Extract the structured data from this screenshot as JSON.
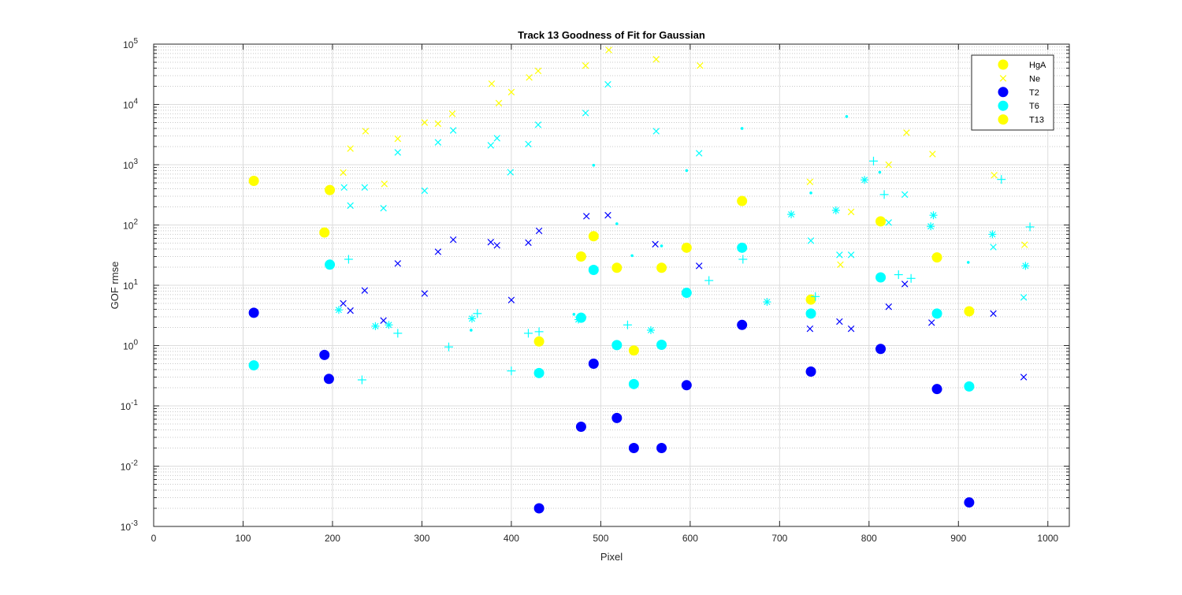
{
  "chart_data": {
    "type": "scatter",
    "title": "Track 13  Goodness of Fit for Gaussian",
    "xlabel": "Pixel",
    "ylabel": "GOF rmse",
    "xlim": [
      0,
      1024
    ],
    "ylim": [
      0.001,
      100000
    ],
    "yscale": "log",
    "grid": "major and minor",
    "legend_position": "top-right",
    "x_ticks": [
      {
        "v": 0,
        "label": "0"
      },
      {
        "v": 100,
        "label": "100"
      },
      {
        "v": 200,
        "label": "200"
      },
      {
        "v": 300,
        "label": "300"
      },
      {
        "v": 400,
        "label": "400"
      },
      {
        "v": 500,
        "label": "500"
      },
      {
        "v": 600,
        "label": "600"
      },
      {
        "v": 700,
        "label": "700"
      },
      {
        "v": 800,
        "label": "800"
      },
      {
        "v": 900,
        "label": "900"
      },
      {
        "v": 1000,
        "label": "1000"
      }
    ],
    "y_ticks": [
      {
        "exp": -3,
        "label": "10",
        "sup": "-3"
      },
      {
        "exp": -2,
        "label": "10",
        "sup": "-2"
      },
      {
        "exp": -1,
        "label": "10",
        "sup": "-1"
      },
      {
        "exp": 0,
        "label": "10",
        "sup": "0"
      },
      {
        "exp": 1,
        "label": "10",
        "sup": "1"
      },
      {
        "exp": 2,
        "label": "10",
        "sup": "2"
      },
      {
        "exp": 3,
        "label": "10",
        "sup": "3"
      },
      {
        "exp": 4,
        "label": "10",
        "sup": "4"
      },
      {
        "exp": 5,
        "label": "10",
        "sup": "5"
      }
    ],
    "legend": [
      {
        "label": "HgA",
        "color": "#FFFF00",
        "marker": "dot"
      },
      {
        "label": "Ne",
        "color": "#FFFF00",
        "marker": "x"
      },
      {
        "label": "T2",
        "color": "#0000FF",
        "marker": "dot"
      },
      {
        "label": "T6",
        "color": "#00FFFF",
        "marker": "dot"
      },
      {
        "label": "T13",
        "color": "#FFFF00",
        "marker": "dot"
      }
    ],
    "series": [
      {
        "color": "#0000FF",
        "marker": "dot",
        "points": [
          [
            112,
            3.5
          ],
          [
            191,
            0.7
          ],
          [
            196,
            0.28
          ],
          [
            431,
            0.002
          ],
          [
            478,
            0.045
          ],
          [
            492,
            0.5
          ],
          [
            518,
            0.063
          ],
          [
            537,
            0.02
          ],
          [
            568,
            0.02
          ],
          [
            596,
            0.22
          ],
          [
            658,
            2.2
          ],
          [
            735,
            0.37
          ],
          [
            813,
            0.88
          ],
          [
            876,
            0.19
          ],
          [
            912,
            0.0025
          ]
        ]
      },
      {
        "color": "#00FFFF",
        "marker": "dot",
        "points": [
          [
            112,
            0.47
          ],
          [
            197,
            22
          ],
          [
            431,
            0.35
          ],
          [
            478,
            2.9
          ],
          [
            492,
            18
          ],
          [
            518,
            1.02
          ],
          [
            537,
            0.23
          ],
          [
            568,
            1.03
          ],
          [
            596,
            7.5
          ],
          [
            658,
            42
          ],
          [
            735,
            3.4
          ],
          [
            813,
            13.5
          ],
          [
            876,
            3.4
          ],
          [
            912,
            0.21
          ]
        ]
      },
      {
        "color": "#FFFF00",
        "marker": "dot",
        "points": [
          [
            112,
            540
          ],
          [
            191,
            75
          ],
          [
            197,
            380
          ],
          [
            431,
            1.17
          ],
          [
            478,
            30
          ],
          [
            492,
            65
          ],
          [
            518,
            19.5
          ],
          [
            537,
            0.83
          ],
          [
            568,
            19.5
          ],
          [
            596,
            42
          ],
          [
            658,
            250
          ],
          [
            735,
            5.8
          ],
          [
            813,
            115
          ],
          [
            876,
            29
          ],
          [
            912,
            3.7
          ]
        ]
      },
      {
        "color": "#FFFF00",
        "marker": "x",
        "points": [
          [
            212,
            740
          ],
          [
            220,
            1850
          ],
          [
            237,
            3600
          ],
          [
            258,
            480
          ],
          [
            273,
            2700
          ],
          [
            303,
            5000
          ],
          [
            318,
            4800
          ],
          [
            334,
            7000
          ],
          [
            378,
            22000
          ],
          [
            386,
            10500
          ],
          [
            400,
            16000
          ],
          [
            420,
            28000
          ],
          [
            430,
            36000
          ],
          [
            483,
            44000
          ],
          [
            509,
            80000
          ],
          [
            562,
            56000
          ],
          [
            611,
            44000
          ],
          [
            734,
            520
          ],
          [
            768,
            22
          ],
          [
            780,
            165
          ],
          [
            822,
            1000
          ],
          [
            842,
            3400
          ],
          [
            871,
            1500
          ],
          [
            940,
            670
          ],
          [
            974,
            47
          ]
        ]
      },
      {
        "color": "#00FFFF",
        "marker": "x",
        "points": [
          [
            213,
            420
          ],
          [
            220,
            210
          ],
          [
            236,
            420
          ],
          [
            257,
            190
          ],
          [
            273,
            1600
          ],
          [
            303,
            370
          ],
          [
            318,
            2350
          ],
          [
            335,
            3700
          ],
          [
            377,
            2100
          ],
          [
            384,
            2750
          ],
          [
            399,
            750
          ],
          [
            419,
            2200
          ],
          [
            430,
            4600
          ],
          [
            483,
            7200
          ],
          [
            508,
            21500
          ],
          [
            562,
            3600
          ],
          [
            610,
            1550
          ],
          [
            735,
            55
          ],
          [
            767,
            32
          ],
          [
            780,
            32
          ],
          [
            822,
            110
          ],
          [
            840,
            320
          ],
          [
            939,
            43
          ],
          [
            973,
            6.3
          ]
        ]
      },
      {
        "color": "#0000FF",
        "marker": "x",
        "points": [
          [
            212,
            5.0
          ],
          [
            220,
            3.8
          ],
          [
            236,
            8.2
          ],
          [
            257,
            2.6
          ],
          [
            273,
            23
          ],
          [
            303,
            7.3
          ],
          [
            318,
            36
          ],
          [
            335,
            57
          ],
          [
            377,
            52
          ],
          [
            384,
            46
          ],
          [
            400,
            5.7
          ],
          [
            419,
            51
          ],
          [
            431,
            80
          ],
          [
            484,
            140
          ],
          [
            508,
            145
          ],
          [
            561,
            48
          ],
          [
            610,
            21
          ],
          [
            734,
            1.9
          ],
          [
            767,
            2.5
          ],
          [
            780,
            1.9
          ],
          [
            822,
            4.4
          ],
          [
            840,
            10.5
          ],
          [
            870,
            2.4
          ],
          [
            939,
            3.4
          ],
          [
            973,
            0.3
          ]
        ]
      },
      {
        "color": "#00FFFF",
        "marker": "plus",
        "points": [
          [
            218,
            27
          ],
          [
            233,
            0.27
          ],
          [
            273,
            1.6
          ],
          [
            330,
            0.95
          ],
          [
            362,
            3.4
          ],
          [
            400,
            0.38
          ],
          [
            419,
            1.6
          ],
          [
            431,
            1.7
          ],
          [
            530,
            2.2
          ],
          [
            621,
            12
          ],
          [
            659,
            27
          ],
          [
            740,
            6.5
          ],
          [
            805,
            1150
          ],
          [
            817,
            320
          ],
          [
            833,
            15
          ],
          [
            847,
            13
          ],
          [
            948,
            570
          ],
          [
            980,
            93
          ]
        ]
      },
      {
        "color": "#00FFFF",
        "marker": "star",
        "points": [
          [
            207,
            3.9
          ],
          [
            248,
            2.1
          ],
          [
            263,
            2.2
          ],
          [
            356,
            2.8
          ],
          [
            475,
            2.7
          ],
          [
            556,
            1.8
          ],
          [
            686,
            5.3
          ],
          [
            713,
            150
          ],
          [
            763,
            175
          ],
          [
            795,
            560
          ],
          [
            869,
            95
          ],
          [
            872,
            145
          ],
          [
            938,
            70
          ],
          [
            975,
            21
          ]
        ]
      },
      {
        "color": "#00FFFF",
        "marker": "tiny",
        "points": [
          [
            355,
            1.8
          ],
          [
            492,
            980
          ],
          [
            518,
            105
          ],
          [
            535,
            31
          ],
          [
            568,
            45
          ],
          [
            596,
            800
          ],
          [
            658,
            4000
          ],
          [
            735,
            340
          ],
          [
            775,
            6300
          ],
          [
            812,
            750
          ],
          [
            911,
            24
          ],
          [
            470,
            3.3
          ]
        ]
      }
    ]
  }
}
